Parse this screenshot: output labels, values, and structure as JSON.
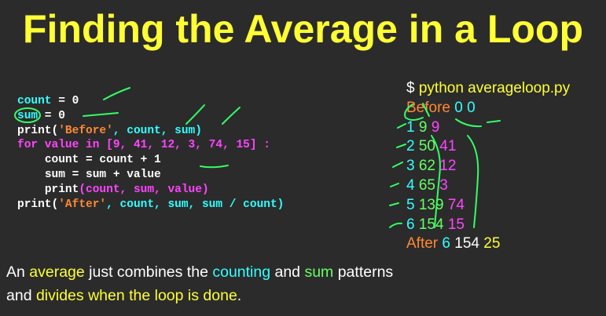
{
  "title": "Finding the Average in a Loop",
  "code": {
    "line1": {
      "var": "count",
      "rest": " = 0"
    },
    "line2": {
      "var": "sum",
      "rest": " = 0"
    },
    "line3": {
      "func": "print",
      "open": "(",
      "str": "'Before'",
      "args": ", count, sum)"
    },
    "line4": {
      "kw_for": "for",
      "mid": " value ",
      "kw_in": "in",
      "list": " [9, 41, 12, 3, 74, 15] :"
    },
    "line5": {
      "indent": "    ",
      "text": "count = count + 1"
    },
    "line6": {
      "indent": "    ",
      "text": "sum = sum + value"
    },
    "line7": {
      "indent": "    ",
      "func": "print",
      "args": "(count, sum, value)"
    },
    "line8": {
      "func": "print",
      "open": "(",
      "str": "'After'",
      "args": ", count, sum, sum / count)"
    }
  },
  "output": {
    "prompt_symbol": "$",
    "command": " python averageloop.py",
    "before": {
      "label": "Before",
      "a": "0",
      "b": "0"
    },
    "rows": [
      {
        "count": "1",
        "sum": "9",
        "value": "9"
      },
      {
        "count": "2",
        "sum": "50",
        "value": "41"
      },
      {
        "count": "3",
        "sum": "62",
        "value": "12"
      },
      {
        "count": "4",
        "sum": "65",
        "value": "3"
      },
      {
        "count": "5",
        "sum": "139",
        "value": "74"
      },
      {
        "count": "6",
        "sum": "154",
        "value": "15"
      }
    ],
    "after": {
      "label": "After",
      "count": "6",
      "sum": "154",
      "avg": "25"
    }
  },
  "description": {
    "p1": "An ",
    "w1": "average",
    "p2": " just combines the ",
    "w2": "counting",
    "p3": " and ",
    "w3": "sum",
    "p4": " patterns",
    "p5": "and ",
    "w4": "divides when the loop is done",
    "p6": "."
  },
  "colors": {
    "background": "#2b2b2b",
    "title": "#ffff33",
    "cyan": "#33ffff",
    "magenta": "#ff44ff",
    "orange": "#ff8833",
    "green": "#66ff66"
  }
}
